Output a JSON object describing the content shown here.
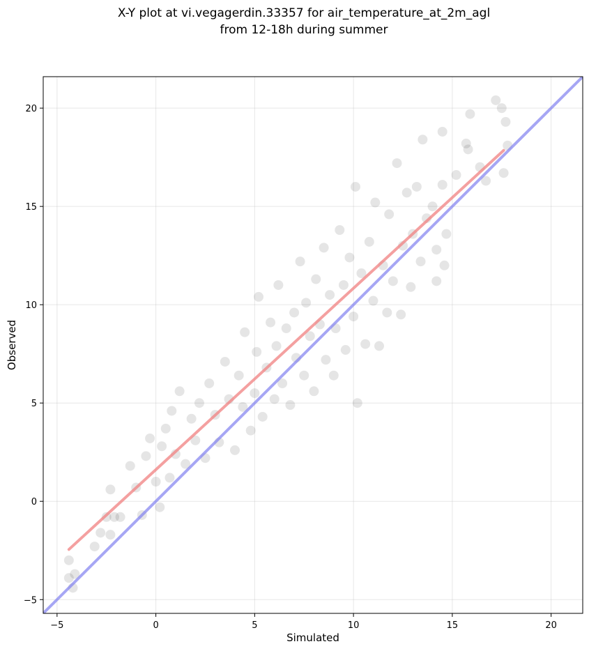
{
  "chart_data": {
    "type": "scatter",
    "title_lines": [
      "X-Y plot at vi.vegagerdin.33357 for air_temperature_at_2m_agl",
      "from 12-18h during summer"
    ],
    "xlabel": "Simulated",
    "ylabel": "Observed",
    "xlim": [
      -5.7,
      21.6
    ],
    "ylim": [
      -5.7,
      21.6
    ],
    "xticks": [
      -5,
      0,
      5,
      10,
      15,
      20
    ],
    "yticks": [
      -5,
      0,
      5,
      10,
      15,
      20
    ],
    "xtick_labels": [
      "−5",
      "0",
      "5",
      "10",
      "15",
      "20"
    ],
    "ytick_labels": [
      "−5",
      "0",
      "5",
      "10",
      "15",
      "20"
    ],
    "grid": true,
    "point_color": "#000000",
    "point_opacity": 0.1,
    "series": [
      {
        "points": [
          [
            -4.4,
            -3.0
          ],
          [
            -4.4,
            -3.9
          ],
          [
            -4.2,
            -4.4
          ],
          [
            -4.1,
            -3.7
          ],
          [
            -3.1,
            -2.3
          ],
          [
            -2.8,
            -1.6
          ],
          [
            -2.5,
            -0.8
          ],
          [
            -2.3,
            0.6
          ],
          [
            -2.1,
            -0.8
          ],
          [
            -1.8,
            -0.8
          ],
          [
            -2.3,
            -1.7
          ],
          [
            -1.3,
            1.8
          ],
          [
            -1.0,
            0.7
          ],
          [
            -0.7,
            -0.7
          ],
          [
            -0.5,
            2.3
          ],
          [
            -0.3,
            3.2
          ],
          [
            0.0,
            1.0
          ],
          [
            0.2,
            -0.3
          ],
          [
            0.3,
            2.8
          ],
          [
            0.5,
            3.7
          ],
          [
            0.7,
            1.2
          ],
          [
            0.8,
            4.6
          ],
          [
            1.0,
            2.4
          ],
          [
            1.2,
            5.6
          ],
          [
            1.5,
            1.9
          ],
          [
            1.8,
            4.2
          ],
          [
            2.0,
            3.1
          ],
          [
            2.2,
            5.0
          ],
          [
            2.5,
            2.2
          ],
          [
            2.7,
            6.0
          ],
          [
            3.0,
            4.4
          ],
          [
            3.2,
            3.0
          ],
          [
            3.5,
            7.1
          ],
          [
            3.7,
            5.2
          ],
          [
            4.0,
            2.6
          ],
          [
            4.2,
            6.4
          ],
          [
            4.4,
            4.8
          ],
          [
            4.5,
            8.6
          ],
          [
            4.8,
            3.6
          ],
          [
            5.0,
            5.5
          ],
          [
            5.1,
            7.6
          ],
          [
            5.2,
            10.4
          ],
          [
            5.4,
            4.3
          ],
          [
            5.6,
            6.8
          ],
          [
            5.8,
            9.1
          ],
          [
            6.0,
            5.2
          ],
          [
            6.1,
            7.9
          ],
          [
            6.2,
            11.0
          ],
          [
            6.4,
            6.0
          ],
          [
            6.6,
            8.8
          ],
          [
            6.8,
            4.9
          ],
          [
            7.0,
            9.6
          ],
          [
            7.1,
            7.3
          ],
          [
            7.3,
            12.2
          ],
          [
            7.5,
            6.4
          ],
          [
            7.6,
            10.1
          ],
          [
            7.8,
            8.4
          ],
          [
            8.0,
            5.6
          ],
          [
            8.1,
            11.3
          ],
          [
            8.3,
            9.0
          ],
          [
            8.5,
            12.9
          ],
          [
            8.6,
            7.2
          ],
          [
            8.8,
            10.5
          ],
          [
            9.0,
            6.4
          ],
          [
            9.1,
            8.8
          ],
          [
            9.3,
            13.8
          ],
          [
            9.5,
            11.0
          ],
          [
            9.6,
            7.7
          ],
          [
            9.8,
            12.4
          ],
          [
            10.0,
            9.4
          ],
          [
            10.1,
            16.0
          ],
          [
            10.2,
            5.0
          ],
          [
            10.4,
            11.6
          ],
          [
            10.6,
            8.0
          ],
          [
            10.8,
            13.2
          ],
          [
            11.0,
            10.2
          ],
          [
            11.1,
            15.2
          ],
          [
            11.3,
            7.9
          ],
          [
            11.5,
            12.0
          ],
          [
            11.7,
            9.6
          ],
          [
            11.8,
            14.6
          ],
          [
            12.0,
            11.2
          ],
          [
            12.2,
            17.2
          ],
          [
            12.4,
            9.5
          ],
          [
            12.5,
            13.0
          ],
          [
            12.7,
            15.7
          ],
          [
            12.9,
            10.9
          ],
          [
            13.0,
            13.6
          ],
          [
            13.2,
            16.0
          ],
          [
            13.4,
            12.2
          ],
          [
            13.5,
            18.4
          ],
          [
            13.7,
            14.4
          ],
          [
            14.0,
            15.0
          ],
          [
            14.2,
            12.8
          ],
          [
            14.5,
            16.1
          ],
          [
            14.5,
            18.8
          ],
          [
            14.7,
            13.6
          ],
          [
            15.2,
            16.6
          ],
          [
            15.8,
            17.9
          ],
          [
            16.4,
            17.0
          ],
          [
            16.7,
            16.3
          ],
          [
            17.2,
            20.4
          ],
          [
            17.5,
            20.0
          ],
          [
            17.7,
            19.3
          ],
          [
            17.8,
            18.1
          ],
          [
            17.6,
            16.7
          ],
          [
            15.9,
            19.7
          ],
          [
            15.7,
            18.2
          ],
          [
            14.2,
            11.2
          ],
          [
            14.6,
            12.0
          ]
        ]
      }
    ],
    "fit_line": {
      "color": "#f08080",
      "x": [
        -4.4,
        17.6
      ],
      "y": [
        -2.45,
        17.85
      ]
    },
    "identity_line": {
      "color": "#8080f0",
      "x": [
        -5.7,
        21.6
      ],
      "y": [
        -5.7,
        21.6
      ]
    }
  }
}
